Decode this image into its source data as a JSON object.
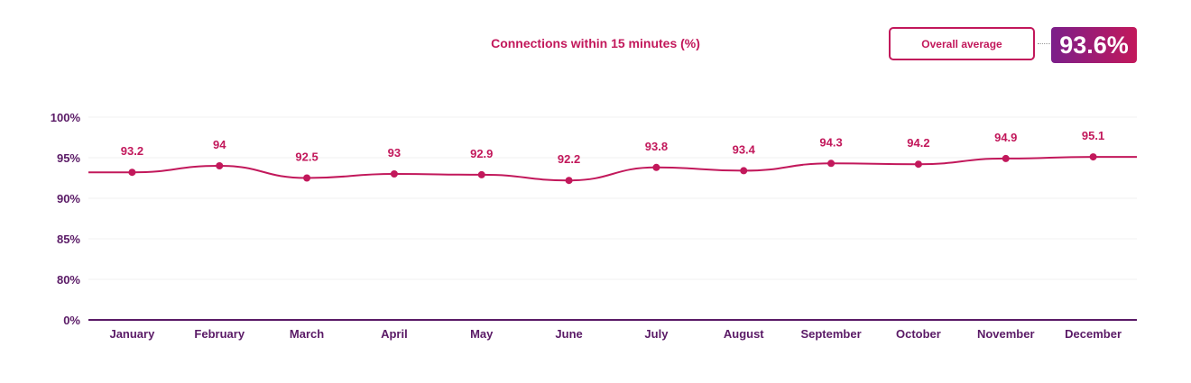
{
  "header": {
    "title": "Connections within 15 minutes (%)",
    "average_label": "Overall average",
    "average_value": "93.6%"
  },
  "chart_data": {
    "type": "line",
    "title": "Connections within 15 minutes (%)",
    "categories": [
      "January",
      "February",
      "March",
      "April",
      "May",
      "June",
      "July",
      "August",
      "September",
      "October",
      "November",
      "December"
    ],
    "series": [
      {
        "values": [
          93.2,
          94,
          92.5,
          93,
          92.9,
          92.2,
          93.8,
          93.4,
          94.3,
          94.2,
          94.9,
          95.1
        ]
      }
    ],
    "data_labels": [
      "93.2",
      "94",
      "92.5",
      "93",
      "92.9",
      "92.2",
      "93.8",
      "93.4",
      "94.3",
      "94.2",
      "94.9",
      "95.1"
    ],
    "y_ticks": [
      {
        "value": 100,
        "label": "100%"
      },
      {
        "value": 95,
        "label": "95%"
      },
      {
        "value": 90,
        "label": "90%"
      },
      {
        "value": 85,
        "label": "85%"
      },
      {
        "value": 80,
        "label": "80%"
      },
      {
        "value": 0,
        "label": "0%"
      }
    ],
    "y_axis_break": true,
    "grid": true,
    "line_color": "#c2185b",
    "axis_color": "#5a1a66"
  }
}
